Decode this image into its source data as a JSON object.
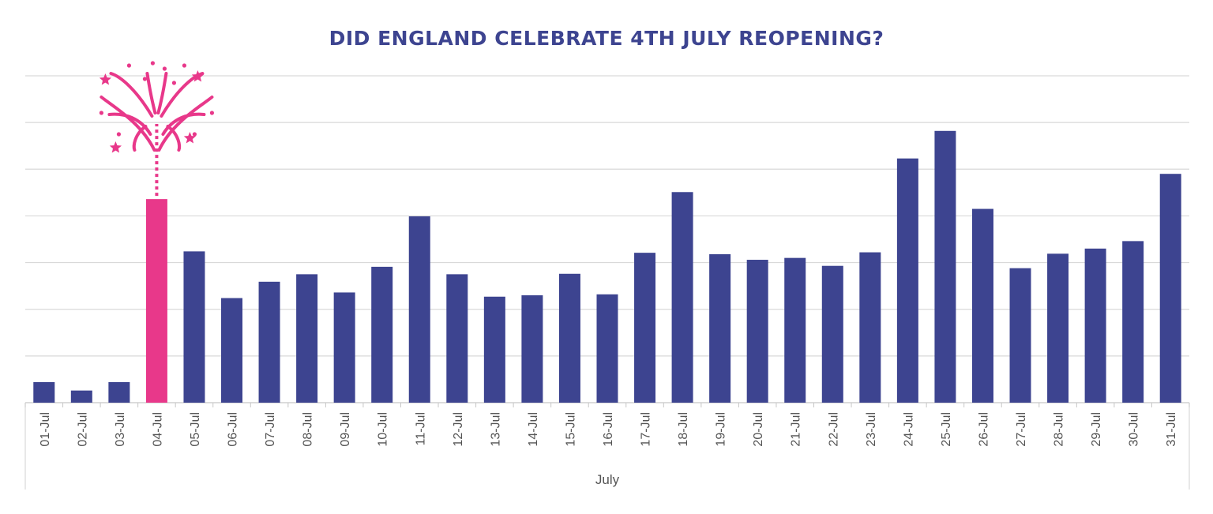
{
  "chart_data": {
    "type": "bar",
    "title": "DID ENGLAND CELEBRATE 4TH JULY REOPENING?",
    "xlabel": "July",
    "ylabel": "",
    "ylim": [
      0,
      7
    ],
    "grid": true,
    "highlight_category": "04-Jul",
    "colors": {
      "bar": "#3d4490",
      "highlight": "#e8388a",
      "title": "#3d4490",
      "grid": "#d9d9d9"
    },
    "categories": [
      "01-Jul",
      "02-Jul",
      "03-Jul",
      "04-Jul",
      "05-Jul",
      "06-Jul",
      "07-Jul",
      "08-Jul",
      "09-Jul",
      "10-Jul",
      "11-Jul",
      "12-Jul",
      "13-Jul",
      "14-Jul",
      "15-Jul",
      "16-Jul",
      "17-Jul",
      "18-Jul",
      "19-Jul",
      "20-Jul",
      "21-Jul",
      "22-Jul",
      "23-Jul",
      "24-Jul",
      "25-Jul",
      "26-Jul",
      "27-Jul",
      "28-Jul",
      "29-Jul",
      "30-Jul",
      "31-Jul"
    ],
    "values": [
      0.44,
      0.26,
      0.44,
      4.36,
      3.24,
      2.24,
      2.59,
      2.75,
      2.36,
      2.91,
      3.99,
      2.75,
      2.27,
      2.3,
      2.76,
      2.32,
      3.21,
      4.51,
      3.18,
      3.06,
      3.1,
      2.93,
      3.22,
      5.23,
      5.82,
      4.15,
      2.88,
      3.19,
      3.3,
      3.46,
      4.9
    ]
  }
}
